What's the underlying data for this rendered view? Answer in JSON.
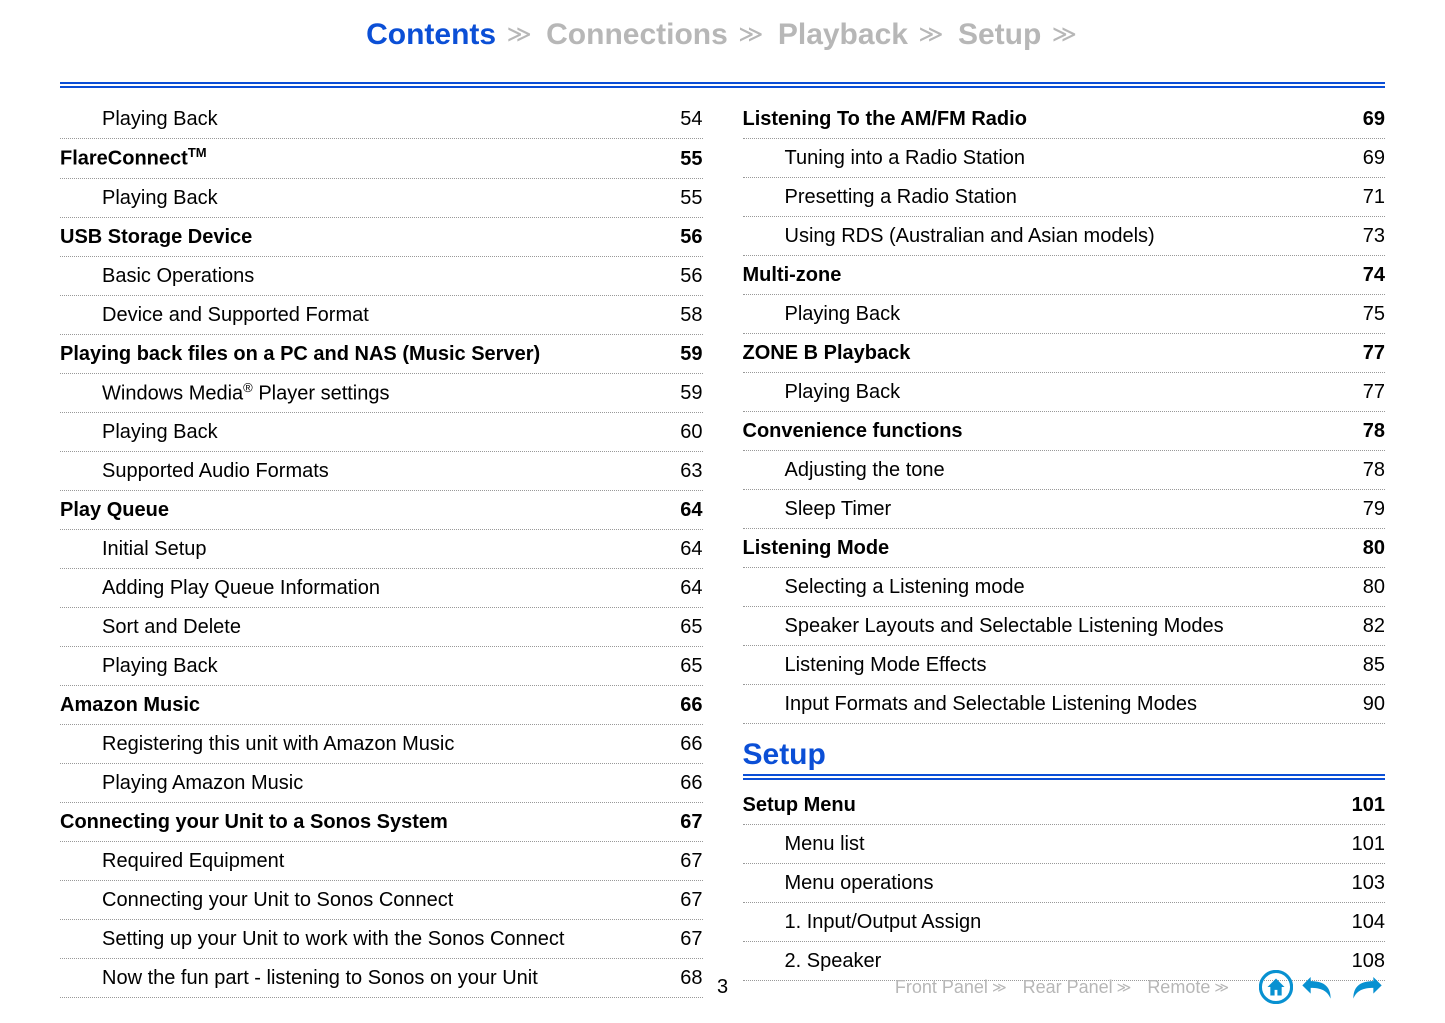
{
  "nav": {
    "items": [
      {
        "label": "Contents",
        "active": true
      },
      {
        "label": "Connections",
        "active": false
      },
      {
        "label": "Playback",
        "active": false
      },
      {
        "label": "Setup",
        "active": false
      }
    ]
  },
  "colors": {
    "primary": "#0b4fd6",
    "inactive": "#b7b7b7",
    "icon": "#0891d1",
    "text": "#000000"
  },
  "left_column": [
    {
      "type": "sub",
      "label": "Playing Back",
      "page": "54"
    },
    {
      "type": "section",
      "label": "FlareConnect",
      "tm": true,
      "page": "55"
    },
    {
      "type": "sub",
      "label": "Playing Back",
      "page": "55"
    },
    {
      "type": "section",
      "label": "USB Storage Device",
      "page": "56"
    },
    {
      "type": "sub",
      "label": "Basic Operations",
      "page": "56"
    },
    {
      "type": "sub",
      "label": "Device and Supported Format",
      "page": "58"
    },
    {
      "type": "section",
      "label": "Playing back files on a PC and NAS (Music Server)",
      "page": "59"
    },
    {
      "type": "sub",
      "label": "Windows Media",
      "reg": true,
      "label_after": " Player settings",
      "page": "59"
    },
    {
      "type": "sub",
      "label": "Playing Back",
      "page": "60"
    },
    {
      "type": "sub",
      "label": "Supported Audio Formats",
      "page": "63"
    },
    {
      "type": "section",
      "label": "Play Queue",
      "page": "64"
    },
    {
      "type": "sub",
      "label": "Initial Setup",
      "page": "64"
    },
    {
      "type": "sub",
      "label": "Adding Play Queue Information",
      "page": "64"
    },
    {
      "type": "sub",
      "label": "Sort and Delete",
      "page": "65"
    },
    {
      "type": "sub",
      "label": "Playing Back",
      "page": "65"
    },
    {
      "type": "section",
      "label": "Amazon Music",
      "page": "66"
    },
    {
      "type": "sub",
      "label": "Registering this unit with Amazon Music",
      "page": "66"
    },
    {
      "type": "sub",
      "label": "Playing Amazon Music",
      "page": "66"
    },
    {
      "type": "section",
      "label": "Connecting your Unit to a Sonos System",
      "page": "67"
    },
    {
      "type": "sub",
      "label": "Required Equipment",
      "page": "67"
    },
    {
      "type": "sub",
      "label": "Connecting your Unit to Sonos Connect",
      "page": "67"
    },
    {
      "type": "sub",
      "label": "Setting up your Unit to work with the Sonos Connect",
      "page": "67"
    },
    {
      "type": "sub",
      "label": "Now the fun part - listening to Sonos on your Unit",
      "page": "68"
    }
  ],
  "right_column": [
    {
      "type": "section",
      "label": "Listening To the AM/FM Radio",
      "page": "69"
    },
    {
      "type": "sub",
      "label": "Tuning into a Radio Station",
      "page": "69"
    },
    {
      "type": "sub",
      "label": "Presetting a Radio Station",
      "page": "71"
    },
    {
      "type": "sub",
      "label": "Using RDS (Australian and Asian models)",
      "page": "73"
    },
    {
      "type": "section",
      "label": "Multi-zone",
      "page": "74"
    },
    {
      "type": "sub",
      "label": "Playing Back",
      "page": "75"
    },
    {
      "type": "section",
      "label": "ZONE B Playback",
      "page": "77"
    },
    {
      "type": "sub",
      "label": "Playing Back",
      "page": "77"
    },
    {
      "type": "section",
      "label": "Convenience functions",
      "page": "78"
    },
    {
      "type": "sub",
      "label": "Adjusting the tone",
      "page": "78"
    },
    {
      "type": "sub",
      "label": "Sleep Timer",
      "page": "79"
    },
    {
      "type": "section",
      "label": "Listening Mode",
      "page": "80"
    },
    {
      "type": "sub",
      "label": "Selecting a Listening mode",
      "page": "80"
    },
    {
      "type": "sub",
      "label": "Speaker Layouts and Selectable Listening Modes",
      "page": "82"
    },
    {
      "type": "sub",
      "label": "Listening Mode Effects",
      "page": "85"
    },
    {
      "type": "sub",
      "label": "Input Formats and Selectable Listening Modes",
      "page": "90"
    }
  ],
  "right_heading": "Setup",
  "right_setup": [
    {
      "type": "section",
      "label": "Setup Menu",
      "page": "101"
    },
    {
      "type": "sub",
      "label": "Menu list",
      "page": "101"
    },
    {
      "type": "sub",
      "label": "Menu operations",
      "page": "103"
    },
    {
      "type": "sub",
      "label": "1. Input/Output Assign",
      "page": "104"
    },
    {
      "type": "sub",
      "label": "2. Speaker",
      "page": "108"
    }
  ],
  "footer": {
    "page_number": "3",
    "links": [
      "Front Panel",
      "Rear Panel",
      "Remote"
    ]
  }
}
